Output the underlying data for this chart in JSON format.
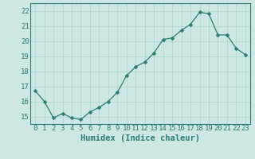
{
  "x": [
    0,
    1,
    2,
    3,
    4,
    5,
    6,
    7,
    8,
    9,
    10,
    11,
    12,
    13,
    14,
    15,
    16,
    17,
    18,
    19,
    20,
    21,
    22,
    23
  ],
  "y": [
    16.7,
    16.0,
    14.9,
    15.2,
    14.9,
    14.8,
    15.3,
    15.6,
    16.0,
    16.6,
    17.7,
    18.3,
    18.6,
    19.2,
    20.1,
    20.2,
    20.7,
    21.1,
    21.9,
    21.8,
    20.4,
    20.4,
    19.5,
    19.1
  ],
  "line_color": "#2e7d6e",
  "marker": "D",
  "marker_size": 2.5,
  "bg_color": "#cde8e4",
  "grid_color": "#b0d8d2",
  "xlabel": "Humidex (Indice chaleur)",
  "ylim": [
    14.5,
    22.5
  ],
  "xlim": [
    -0.5,
    23.5
  ],
  "yticks": [
    15,
    16,
    17,
    18,
    19,
    20,
    21,
    22
  ],
  "xticks": [
    0,
    1,
    2,
    3,
    4,
    5,
    6,
    7,
    8,
    9,
    10,
    11,
    12,
    13,
    14,
    15,
    16,
    17,
    18,
    19,
    20,
    21,
    22,
    23
  ],
  "tick_color": "#2e7d6e",
  "label_color": "#2e7d6e",
  "xlabel_fontsize": 7.5,
  "tick_fontsize": 6.5
}
